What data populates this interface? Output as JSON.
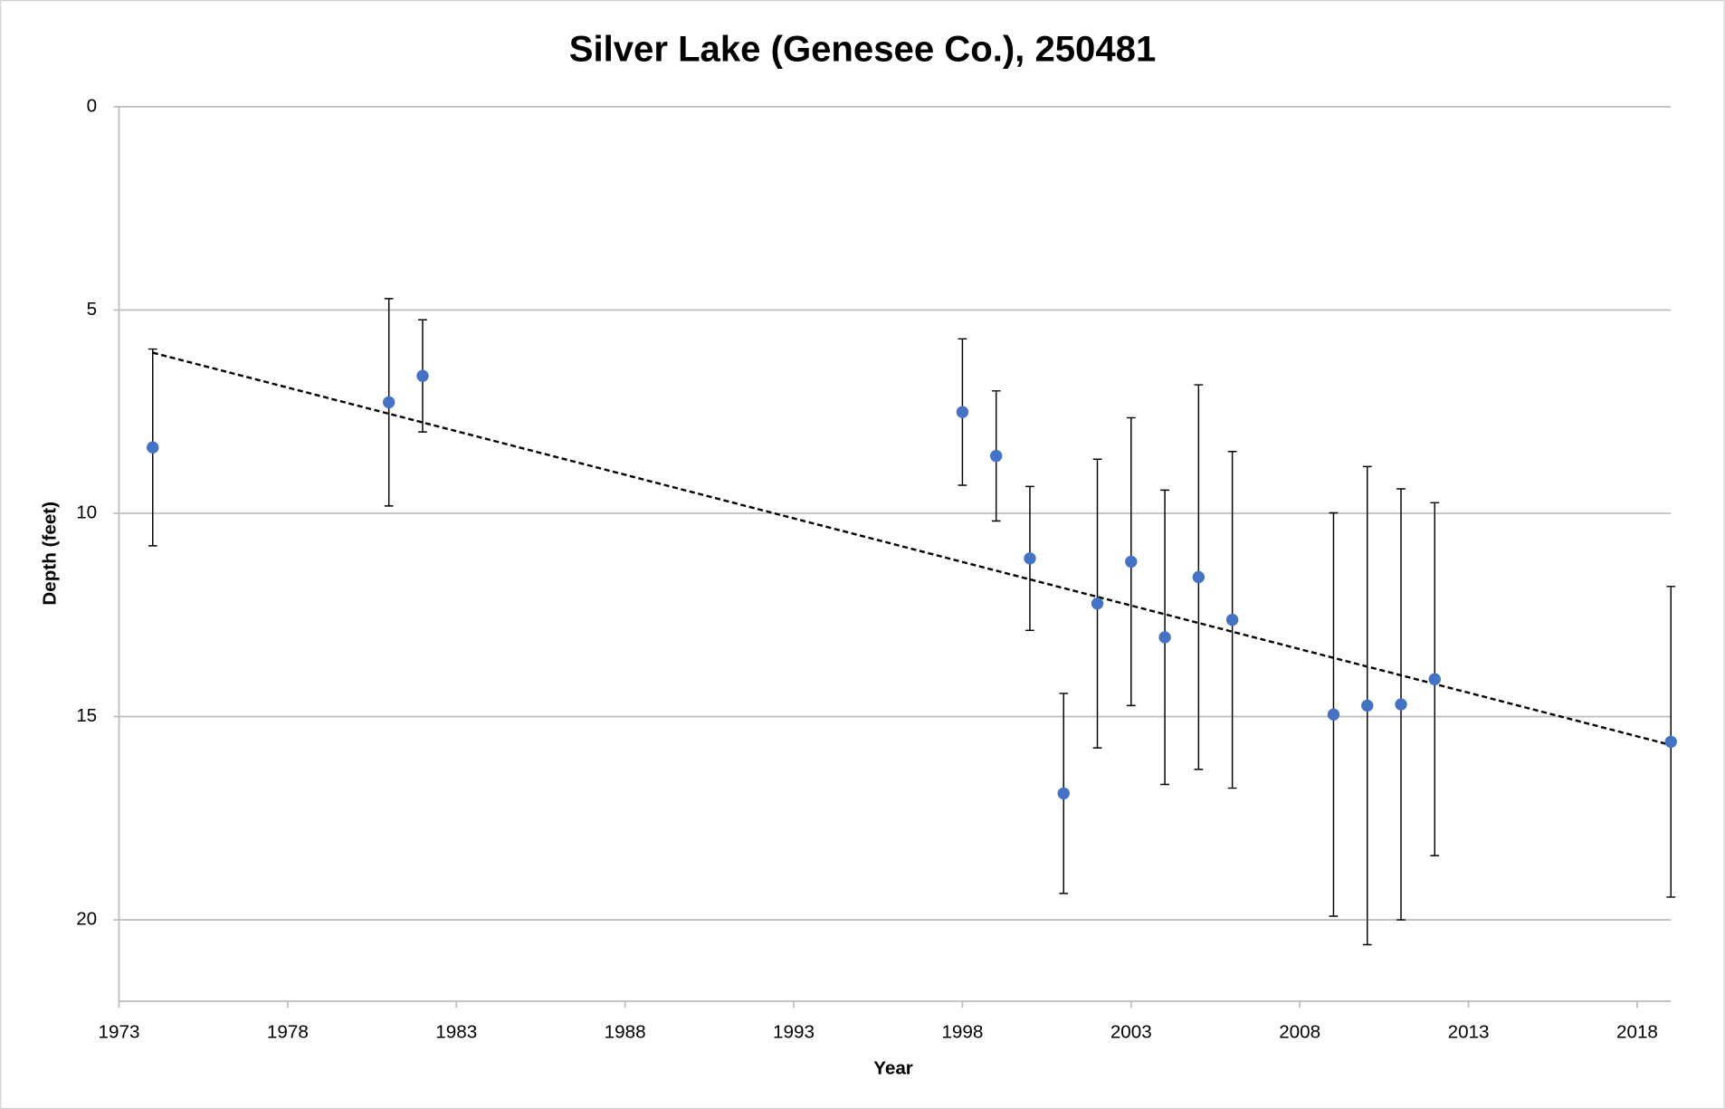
{
  "chart_data": {
    "type": "scatter",
    "title": "Silver Lake (Genesee Co.), 250481",
    "x_label": "Year",
    "y_label": "Depth (feet)",
    "x": [
      1974,
      1981,
      1982,
      1998,
      1999,
      2000,
      2001,
      2002,
      2003,
      2004,
      2005,
      2006,
      2009,
      2010,
      2011,
      2012,
      2019
    ],
    "values": [
      8.38,
      7.27,
      6.62,
      7.51,
      8.59,
      11.11,
      16.89,
      12.22,
      11.19,
      13.05,
      11.57,
      12.62,
      14.95,
      14.73,
      14.7,
      14.08,
      15.62
    ],
    "errors": [
      2.42,
      2.55,
      1.38,
      1.8,
      1.6,
      1.77,
      2.46,
      3.55,
      3.54,
      3.62,
      4.73,
      4.14,
      4.96,
      5.88,
      5.3,
      4.34,
      3.82
    ],
    "color": "#4472c4",
    "trendline": {
      "x": [
        1974,
        2019
      ],
      "values": [
        6.05,
        15.7
      ]
    },
    "xlim": [
      1973,
      2019
    ],
    "xticks": [
      1973,
      1978,
      1983,
      1988,
      1993,
      1998,
      2003,
      2008,
      2013,
      2018
    ],
    "ylim": [
      0,
      22
    ],
    "yticks": [
      0,
      5,
      10,
      15,
      20
    ],
    "y_inverted": true,
    "grid": true
  }
}
